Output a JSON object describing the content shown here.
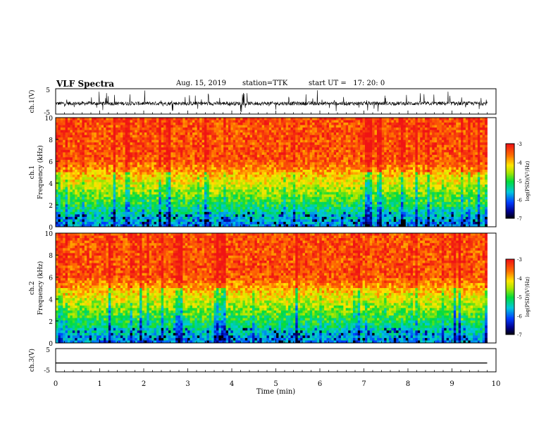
{
  "header": {
    "title": "VLF Spectra",
    "date": "Aug. 15, 2019",
    "station": "station=TTK",
    "start": "start UT =   17: 20: 0"
  },
  "chart_data": [
    {
      "type": "line",
      "panel": "ch1-waveform",
      "ylabel": "ch.1(V)",
      "yticks": [
        "5",
        "-5"
      ],
      "ylim": [
        -5,
        5
      ],
      "xlim": [
        0,
        10
      ],
      "color": "#000000"
    },
    {
      "type": "heatmap",
      "panel": "ch1-spectrogram",
      "ylabel_top": "ch.1",
      "ylabel": "Frequency (kHz)",
      "ylim": [
        0,
        10
      ],
      "yticks": [
        "0",
        "2",
        "4",
        "6",
        "8",
        "10"
      ],
      "xlim": [
        0,
        9.8
      ],
      "colorbar": {
        "label": "log(PSD)(V²/Hz)",
        "range": [
          -7,
          -3
        ],
        "ticks": [
          "-3",
          "-4",
          "-5",
          "-6",
          "-7"
        ]
      }
    },
    {
      "type": "heatmap",
      "panel": "ch2-spectrogram",
      "ylabel_top": "ch.2",
      "ylabel": "Frequency (kHz)",
      "ylim": [
        0,
        10
      ],
      "yticks": [
        "0",
        "2",
        "4",
        "6",
        "8",
        "10"
      ],
      "xlim": [
        0,
        9.8
      ],
      "colorbar": {
        "label": "log(PSD)(V²/Hz)",
        "range": [
          -7,
          -3
        ],
        "ticks": [
          "-3",
          "-4",
          "-5",
          "-6",
          "-7"
        ]
      }
    },
    {
      "type": "line",
      "panel": "ch3-waveform",
      "ylabel": "ch.3(V)",
      "yticks": [
        "5",
        "-5"
      ],
      "ylim": [
        -5,
        5
      ],
      "xlim": [
        0,
        10
      ],
      "baseline_value": -1.2,
      "color": "#000000"
    }
  ],
  "xaxis": {
    "label": "Time (min)",
    "ticks": [
      "0",
      "1",
      "2",
      "3",
      "4",
      "5",
      "6",
      "7",
      "8",
      "9",
      "10"
    ],
    "range": [
      0,
      10
    ]
  }
}
